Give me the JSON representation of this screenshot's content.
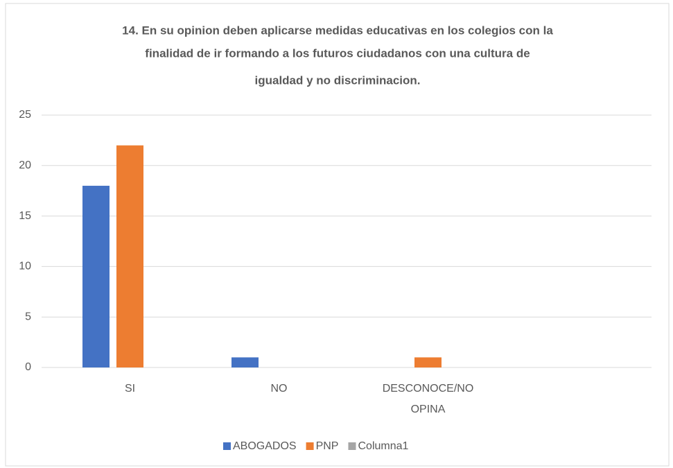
{
  "chart_data": {
    "type": "bar",
    "title": [
      "14. En su opinion deben aplicarse medidas educativas en los colegios con la",
      "finalidad de ir formando a los futuros ciudadanos con una cultura de",
      "igualdad y no discriminacion."
    ],
    "categories": [
      "SI",
      "NO",
      "DESCONOCE/NO OPINA",
      null
    ],
    "series": [
      {
        "name": "ABOGADOS",
        "color": "#4472c4",
        "values": [
          18,
          1,
          0,
          null
        ]
      },
      {
        "name": "PNP",
        "color": "#ed7d31",
        "values": [
          22,
          0,
          1,
          null
        ]
      },
      {
        "name": "Columna1",
        "color": "#a5a5a5",
        "values": [
          null,
          null,
          null,
          null
        ]
      }
    ],
    "ylim": [
      0,
      25
    ],
    "yticks": [
      0,
      5,
      10,
      15,
      20,
      25
    ],
    "grid": true,
    "legend": "bottom"
  }
}
